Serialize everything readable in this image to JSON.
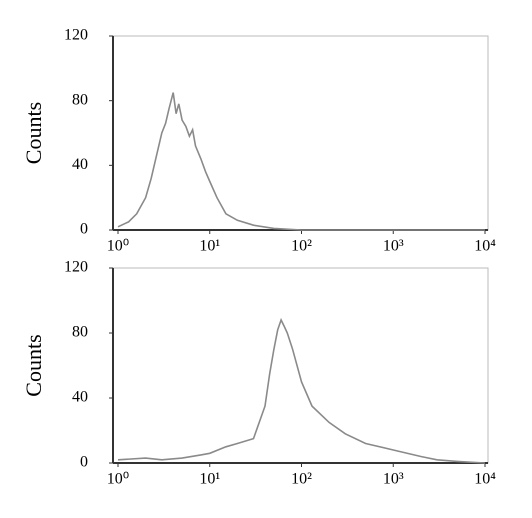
{
  "chart_data": [
    {
      "type": "line",
      "ylabel": "Counts",
      "xscale": "log",
      "xlim": [
        1,
        10000
      ],
      "ylim": [
        0,
        120
      ],
      "xticks": [
        {
          "value": 1,
          "label": "10⁰"
        },
        {
          "value": 10,
          "label": "10¹"
        },
        {
          "value": 100,
          "label": "10²"
        },
        {
          "value": 1000,
          "label": "10³"
        },
        {
          "value": 10000,
          "label": "10⁴"
        }
      ],
      "yticks": [
        0,
        40,
        80,
        120
      ],
      "series": [
        {
          "color": "#8a8a8a",
          "x": [
            1,
            1.3,
            1.6,
            2,
            2.3,
            2.6,
            3,
            3.3,
            3.6,
            4,
            4.3,
            4.6,
            5,
            5.5,
            6,
            6.5,
            7,
            8,
            9,
            10,
            12,
            15,
            20,
            30,
            50,
            100,
            1000,
            10000
          ],
          "values": [
            2,
            5,
            10,
            20,
            32,
            45,
            60,
            66,
            75,
            85,
            72,
            78,
            68,
            64,
            58,
            62,
            52,
            44,
            36,
            30,
            20,
            10,
            6,
            3,
            1,
            0,
            0,
            0
          ]
        }
      ]
    },
    {
      "type": "line",
      "ylabel": "Counts",
      "xscale": "log",
      "xlim": [
        1,
        10000
      ],
      "ylim": [
        0,
        120
      ],
      "xticks": [
        {
          "value": 1,
          "label": "10⁰"
        },
        {
          "value": 10,
          "label": "10¹"
        },
        {
          "value": 100,
          "label": "10²"
        },
        {
          "value": 1000,
          "label": "10³"
        },
        {
          "value": 10000,
          "label": "10⁴"
        }
      ],
      "yticks": [
        0,
        40,
        80,
        120
      ],
      "series": [
        {
          "color": "#8a8a8a",
          "x": [
            1,
            2,
            3,
            5,
            8,
            10,
            15,
            20,
            30,
            40,
            45,
            50,
            55,
            60,
            65,
            70,
            80,
            100,
            130,
            200,
            300,
            500,
            1000,
            2000,
            3000,
            5000,
            10000
          ],
          "values": [
            2,
            3,
            2,
            3,
            5,
            6,
            10,
            12,
            15,
            35,
            55,
            70,
            82,
            88,
            84,
            80,
            70,
            50,
            35,
            25,
            18,
            12,
            8,
            4,
            2,
            1,
            0
          ]
        }
      ]
    }
  ]
}
